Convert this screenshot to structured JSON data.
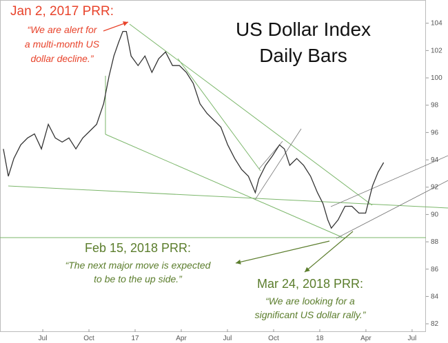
{
  "chart_data": {
    "type": "line",
    "title": [
      "US Dollar Index",
      "Daily Bars"
    ],
    "x": [
      3.44,
      3.76,
      4.12,
      4.57,
      5.01,
      5.46,
      5.91,
      6.36,
      6.81,
      7.26,
      7.7,
      8.15,
      8.6,
      9.05,
      9.5,
      9.95,
      10.3,
      10.62,
      10.93,
      11.2,
      11.43,
      11.74,
      12.19,
      12.64,
      13.09,
      13.53,
      13.98,
      14.43,
      14.88,
      15.33,
      15.78,
      16.22,
      16.67,
      17.12,
      17.57,
      18.02,
      18.47,
      18.92,
      19.36,
      19.81,
      20.04,
      20.48,
      20.93,
      21.38,
      21.7,
      22.05,
      22.5,
      22.95,
      23.4,
      23.85,
      24.21,
      24.52,
      24.75,
      25.19,
      25.64,
      26.09,
      26.54,
      26.98,
      27.43,
      27.79,
      28.15
    ],
    "values": [
      94.8,
      92.8,
      94.1,
      95.1,
      95.6,
      95.9,
      94.8,
      96.6,
      95.6,
      95.3,
      95.6,
      94.8,
      95.6,
      96.1,
      96.6,
      98.1,
      100.1,
      101.6,
      102.6,
      103.4,
      103.4,
      101.6,
      100.9,
      101.6,
      100.4,
      101.4,
      101.9,
      100.9,
      100.9,
      100.4,
      99.6,
      98.1,
      97.4,
      96.9,
      96.4,
      95.1,
      94.1,
      93.3,
      92.8,
      91.6,
      92.6,
      93.6,
      94.3,
      95.1,
      94.8,
      93.6,
      94.1,
      93.6,
      92.8,
      91.6,
      90.8,
      89.6,
      89.0,
      89.6,
      90.6,
      90.6,
      90.1,
      90.1,
      92.1,
      93.1,
      93.8
    ],
    "color": "#333333",
    "xlim": [
      3.22,
      30.9
    ],
    "xticks": [
      {
        "value": 6,
        "label": "Jul"
      },
      {
        "value": 9,
        "label": "Oct"
      },
      {
        "value": 12,
        "label": "17"
      },
      {
        "value": 15,
        "label": "Apr"
      },
      {
        "value": 18,
        "label": "Jul"
      },
      {
        "value": 21,
        "label": "Oct"
      },
      {
        "value": 24,
        "label": "18"
      },
      {
        "value": 27,
        "label": "Apr"
      },
      {
        "value": 30,
        "label": "Jul"
      }
    ],
    "ylim": [
      81.4,
      105.7
    ],
    "yticks": [
      82,
      84,
      86,
      88,
      90,
      92,
      94,
      96,
      98,
      100,
      102,
      104
    ],
    "annotations": [
      {
        "title": "Jan 2, 2017 PRR:",
        "lines": [
          "“We are alert for",
          "a multi-month US",
          "dollar decline.”"
        ],
        "color": "#e8432b"
      },
      {
        "title": "Feb 15, 2018 PRR:",
        "lines": [
          "“The next major move is expected",
          "to be to the up side.”"
        ],
        "color": "#5b7d2c"
      },
      {
        "title": "Mar 24, 2018 PRR:",
        "lines": [
          "“We are looking for a",
          "significant US dollar rally.”"
        ],
        "color": "#5b7d2c"
      }
    ]
  }
}
